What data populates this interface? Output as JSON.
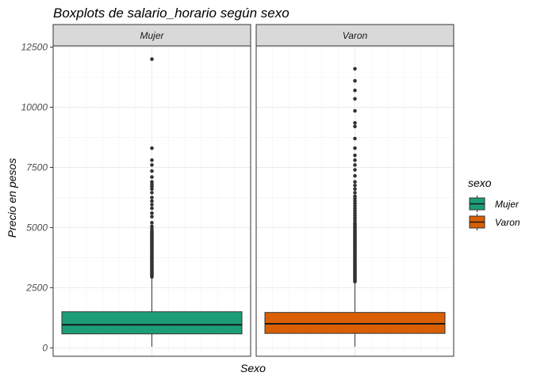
{
  "chart_data": {
    "type": "boxplot",
    "title": "Boxplots de salario_horario según sexo",
    "xlabel": "Sexo",
    "ylabel": "Precio en pesos",
    "ylim": [
      -350,
      12550
    ],
    "yticks": [
      0,
      2500,
      5000,
      7500,
      10000,
      12500
    ],
    "grid": true,
    "legend": {
      "title": "sexo",
      "position": "right",
      "entries": [
        {
          "label": "Mujer",
          "color": "#1b9e77"
        },
        {
          "label": "Varon",
          "color": "#d95f02"
        }
      ]
    },
    "panels": [
      {
        "strip": "Mujer",
        "color": "#1b9e77",
        "box": {
          "min": 50,
          "q1": 580,
          "median": 960,
          "q3": 1500,
          "whisker_high": 2880
        },
        "outliers": [
          2950,
          3000,
          3050,
          3100,
          3150,
          3200,
          3250,
          3300,
          3350,
          3400,
          3450,
          3500,
          3550,
          3600,
          3650,
          3700,
          3750,
          3800,
          3850,
          3900,
          3950,
          4000,
          4050,
          4100,
          4150,
          4200,
          4250,
          4300,
          4350,
          4400,
          4450,
          4500,
          4550,
          4600,
          4650,
          4700,
          4750,
          4800,
          4850,
          4950,
          5050,
          5200,
          5450,
          5600,
          5800,
          5950,
          6100,
          6250,
          6450,
          6600,
          6700,
          6800,
          6900,
          7100,
          7350,
          7600,
          7800,
          8300,
          12000
        ]
      },
      {
        "strip": "Varon",
        "color": "#d95f02",
        "box": {
          "min": 50,
          "q1": 600,
          "median": 1000,
          "q3": 1470,
          "whisker_high": 2700
        },
        "outliers": [
          2750,
          2800,
          2850,
          2900,
          2950,
          3000,
          3050,
          3100,
          3150,
          3200,
          3250,
          3300,
          3350,
          3400,
          3450,
          3500,
          3550,
          3600,
          3650,
          3700,
          3750,
          3800,
          3850,
          3900,
          3950,
          4000,
          4050,
          4100,
          4150,
          4200,
          4250,
          4300,
          4350,
          4400,
          4450,
          4500,
          4550,
          4600,
          4650,
          4700,
          4750,
          4800,
          4850,
          4900,
          4950,
          5000,
          5050,
          5100,
          5150,
          5200,
          5300,
          5400,
          5500,
          5600,
          5700,
          5800,
          5900,
          6000,
          6100,
          6200,
          6300,
          6450,
          6600,
          6750,
          6900,
          7150,
          7400,
          7600,
          7800,
          8000,
          8300,
          8700,
          9200,
          9350,
          9850,
          10350,
          10700,
          11100,
          11600
        ]
      }
    ]
  }
}
